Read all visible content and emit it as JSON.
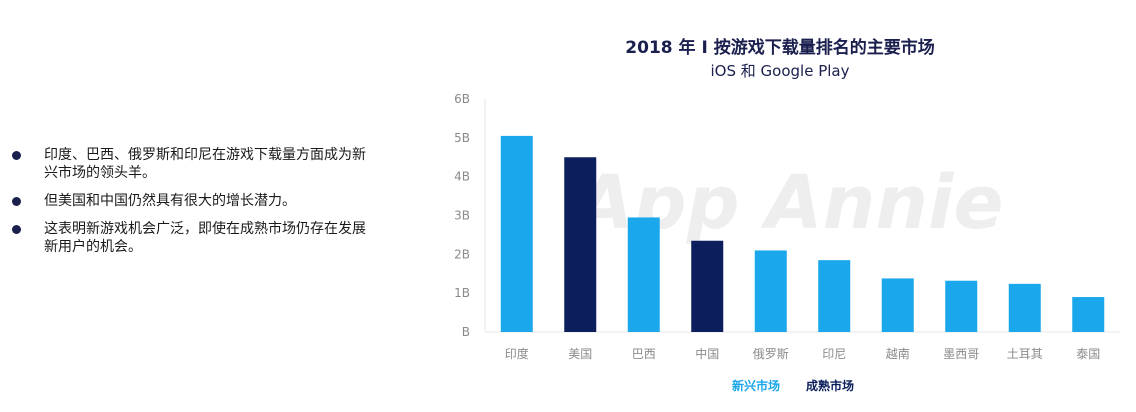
{
  "bullets": [
    "印度、巴西、俄罗斯和印尼在游戏下载量方面成为新兴市场的领头羊。",
    "但美国和中国仍然具有很大的增长潜力。",
    "这表明新游戏机会广泛，即使在成熟市场仍存在发展新用户的机会。"
  ],
  "chart_data": {
    "type": "bar",
    "title": "2018 年 I 按游戏下载量排名的主要市场",
    "subtitle": "iOS 和 Google Play",
    "watermark": "App Annie",
    "categories": [
      "印度",
      "美国",
      "巴西",
      "中国",
      "俄罗斯",
      "印尼",
      "越南",
      "墨西哥",
      "土耳其",
      "泰国"
    ],
    "values": [
      5.05,
      4.5,
      2.95,
      2.35,
      2.1,
      1.85,
      1.38,
      1.32,
      1.24,
      0.9
    ],
    "groups": [
      "新兴市场",
      "成熟市场",
      "新兴市场",
      "成熟市场",
      "新兴市场",
      "新兴市场",
      "新兴市场",
      "新兴市场",
      "新兴市场",
      "新兴市场"
    ],
    "y_ticks": [
      "B",
      "1B",
      "2B",
      "3B",
      "4B",
      "5B",
      "6B"
    ],
    "ylim": [
      0,
      6
    ],
    "unit": "B",
    "grid": false,
    "legend": [
      {
        "name": "新兴市场",
        "color": "#1aa7ec"
      },
      {
        "name": "成熟市场",
        "color": "#0c1f5c"
      }
    ],
    "legend_position": "bottom"
  }
}
